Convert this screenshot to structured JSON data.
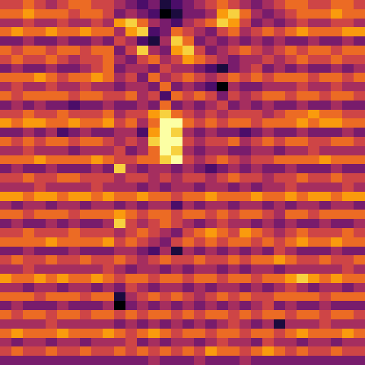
{
  "chart_data": {
    "type": "heatmap",
    "color": "inferno",
    "zlim": [
      0,
      9
    ],
    "tick_labels": false,
    "z": [
      [
        5,
        5,
        6,
        5,
        4,
        5,
        6,
        6,
        5,
        5,
        4,
        3,
        2,
        3,
        1,
        2,
        3,
        4,
        5,
        6,
        5,
        4,
        3,
        4,
        5,
        6,
        6,
        5,
        5,
        6,
        6,
        5
      ],
      [
        6,
        6,
        7,
        6,
        6,
        6,
        5,
        6,
        6,
        5,
        3,
        4,
        3,
        2,
        0,
        1,
        3,
        3,
        4,
        7,
        8,
        6,
        4,
        3,
        4,
        5,
        6,
        6,
        6,
        7,
        6,
        6
      ],
      [
        4,
        4,
        5,
        4,
        4,
        5,
        4,
        4,
        5,
        4,
        7,
        8,
        6,
        4,
        3,
        2,
        4,
        5,
        6,
        8,
        7,
        5,
        3,
        4,
        3,
        4,
        5,
        4,
        4,
        5,
        5,
        4
      ],
      [
        6,
        7,
        6,
        6,
        7,
        6,
        6,
        7,
        6,
        6,
        4,
        7,
        8,
        2,
        3,
        6,
        5,
        4,
        3,
        5,
        6,
        4,
        5,
        6,
        5,
        6,
        7,
        6,
        6,
        6,
        7,
        7
      ],
      [
        3,
        3,
        4,
        3,
        3,
        4,
        3,
        3,
        4,
        3,
        5,
        4,
        2,
        1,
        4,
        8,
        6,
        3,
        4,
        3,
        4,
        3,
        4,
        3,
        4,
        3,
        3,
        4,
        3,
        3,
        4,
        3
      ],
      [
        6,
        5,
        6,
        6,
        5,
        6,
        6,
        5,
        6,
        6,
        3,
        5,
        8,
        4,
        3,
        7,
        8,
        5,
        3,
        4,
        5,
        6,
        5,
        4,
        5,
        6,
        5,
        6,
        6,
        5,
        6,
        6
      ],
      [
        5,
        6,
        5,
        5,
        6,
        5,
        4,
        5,
        5,
        6,
        4,
        3,
        5,
        6,
        4,
        5,
        7,
        6,
        5,
        4,
        3,
        4,
        4,
        5,
        4,
        5,
        6,
        5,
        5,
        6,
        5,
        5
      ],
      [
        3,
        4,
        3,
        3,
        4,
        3,
        3,
        4,
        5,
        6,
        3,
        4,
        4,
        3,
        5,
        4,
        4,
        3,
        2,
        1,
        3,
        4,
        5,
        3,
        4,
        3,
        4,
        3,
        3,
        4,
        3,
        4
      ],
      [
        6,
        6,
        6,
        7,
        6,
        5,
        6,
        6,
        7,
        6,
        4,
        5,
        3,
        6,
        4,
        5,
        6,
        5,
        4,
        5,
        6,
        5,
        6,
        5,
        6,
        6,
        6,
        5,
        6,
        6,
        5,
        6
      ],
      [
        4,
        5,
        4,
        4,
        5,
        4,
        4,
        5,
        4,
        4,
        3,
        4,
        4,
        3,
        6,
        3,
        4,
        3,
        2,
        0,
        4,
        3,
        3,
        4,
        4,
        4,
        5,
        4,
        4,
        5,
        4,
        4
      ],
      [
        6,
        5,
        6,
        6,
        6,
        6,
        5,
        6,
        6,
        5,
        5,
        6,
        4,
        5,
        2,
        6,
        5,
        6,
        5,
        3,
        5,
        4,
        5,
        6,
        6,
        5,
        6,
        6,
        5,
        6,
        6,
        5
      ],
      [
        3,
        4,
        3,
        4,
        3,
        3,
        2,
        3,
        3,
        4,
        3,
        3,
        4,
        3,
        6,
        3,
        4,
        3,
        4,
        5,
        3,
        4,
        3,
        4,
        3,
        3,
        4,
        3,
        3,
        4,
        3,
        3
      ],
      [
        5,
        5,
        6,
        5,
        5,
        6,
        5,
        5,
        5,
        6,
        4,
        5,
        5,
        7,
        8,
        6,
        5,
        4,
        5,
        4,
        5,
        5,
        5,
        4,
        5,
        6,
        6,
        7,
        6,
        6,
        5,
        5
      ],
      [
        7,
        6,
        7,
        7,
        6,
        6,
        7,
        6,
        6,
        7,
        5,
        6,
        4,
        6,
        9,
        9,
        6,
        5,
        6,
        5,
        6,
        6,
        5,
        6,
        6,
        6,
        7,
        6,
        7,
        7,
        6,
        6
      ],
      [
        3,
        3,
        4,
        3,
        4,
        2,
        3,
        4,
        3,
        3,
        4,
        4,
        2,
        7,
        9,
        8,
        4,
        3,
        4,
        3,
        3,
        2,
        3,
        4,
        3,
        3,
        4,
        3,
        3,
        3,
        4,
        3
      ],
      [
        6,
        5,
        6,
        5,
        6,
        6,
        5,
        6,
        6,
        5,
        4,
        5,
        4,
        8,
        9,
        9,
        5,
        4,
        5,
        5,
        6,
        4,
        5,
        6,
        5,
        6,
        6,
        5,
        5,
        6,
        6,
        5
      ],
      [
        4,
        4,
        5,
        4,
        4,
        4,
        3,
        4,
        4,
        4,
        5,
        3,
        4,
        6,
        9,
        8,
        4,
        3,
        4,
        4,
        3,
        3,
        4,
        4,
        3,
        4,
        4,
        5,
        4,
        4,
        4,
        4
      ],
      [
        6,
        6,
        6,
        7,
        6,
        6,
        6,
        6,
        7,
        6,
        5,
        5,
        6,
        6,
        8,
        9,
        5,
        4,
        5,
        6,
        5,
        4,
        5,
        5,
        6,
        6,
        6,
        6,
        7,
        6,
        6,
        6
      ],
      [
        3,
        4,
        3,
        3,
        4,
        3,
        3,
        3,
        4,
        3,
        8,
        4,
        3,
        4,
        4,
        3,
        4,
        3,
        2,
        3,
        4,
        3,
        4,
        3,
        3,
        4,
        3,
        3,
        3,
        4,
        3,
        3
      ],
      [
        5,
        5,
        6,
        5,
        5,
        6,
        6,
        5,
        5,
        5,
        4,
        5,
        5,
        4,
        5,
        4,
        5,
        5,
        4,
        5,
        6,
        5,
        5,
        4,
        5,
        5,
        6,
        5,
        5,
        6,
        5,
        5
      ],
      [
        4,
        4,
        4,
        5,
        4,
        4,
        4,
        4,
        5,
        4,
        4,
        4,
        3,
        4,
        3,
        4,
        4,
        3,
        4,
        4,
        3,
        4,
        3,
        4,
        4,
        5,
        4,
        4,
        4,
        4,
        5,
        4
      ],
      [
        7,
        7,
        6,
        7,
        7,
        6,
        7,
        7,
        6,
        7,
        6,
        6,
        7,
        6,
        6,
        5,
        6,
        6,
        7,
        6,
        6,
        6,
        7,
        6,
        6,
        7,
        6,
        7,
        7,
        6,
        7,
        7
      ],
      [
        4,
        3,
        4,
        4,
        3,
        4,
        4,
        3,
        4,
        4,
        3,
        4,
        3,
        4,
        4,
        2,
        4,
        3,
        4,
        4,
        3,
        4,
        4,
        3,
        4,
        3,
        4,
        4,
        3,
        4,
        4,
        3
      ],
      [
        6,
        6,
        5,
        6,
        6,
        6,
        5,
        6,
        6,
        6,
        7,
        6,
        5,
        6,
        6,
        5,
        6,
        6,
        5,
        6,
        5,
        6,
        6,
        5,
        4,
        6,
        6,
        5,
        6,
        6,
        6,
        6
      ],
      [
        3,
        4,
        3,
        3,
        4,
        3,
        4,
        3,
        3,
        4,
        8,
        5,
        4,
        5,
        6,
        5,
        4,
        3,
        4,
        5,
        4,
        4,
        3,
        4,
        3,
        4,
        3,
        3,
        4,
        3,
        3,
        4
      ],
      [
        5,
        5,
        6,
        5,
        5,
        5,
        6,
        5,
        5,
        5,
        4,
        5,
        6,
        5,
        4,
        3,
        5,
        6,
        7,
        6,
        5,
        7,
        6,
        5,
        4,
        5,
        6,
        5,
        5,
        5,
        6,
        5
      ],
      [
        6,
        6,
        6,
        6,
        7,
        6,
        6,
        6,
        6,
        7,
        5,
        6,
        5,
        4,
        3,
        5,
        6,
        5,
        6,
        5,
        6,
        6,
        5,
        6,
        5,
        6,
        7,
        6,
        6,
        7,
        6,
        6
      ],
      [
        3,
        3,
        4,
        3,
        3,
        3,
        4,
        3,
        3,
        3,
        4,
        4,
        3,
        2,
        4,
        1,
        4,
        3,
        4,
        3,
        4,
        3,
        4,
        3,
        5,
        4,
        3,
        3,
        3,
        4,
        3,
        3
      ],
      [
        5,
        6,
        5,
        5,
        6,
        5,
        5,
        6,
        5,
        5,
        6,
        5,
        4,
        5,
        6,
        5,
        5,
        6,
        5,
        5,
        6,
        5,
        6,
        6,
        7,
        6,
        5,
        5,
        6,
        5,
        5,
        6
      ],
      [
        4,
        4,
        5,
        4,
        4,
        4,
        4,
        4,
        4,
        5,
        4,
        3,
        4,
        4,
        3,
        4,
        3,
        4,
        4,
        3,
        4,
        3,
        4,
        4,
        3,
        4,
        4,
        4,
        4,
        4,
        5,
        4
      ],
      [
        7,
        6,
        6,
        7,
        6,
        7,
        6,
        6,
        7,
        6,
        5,
        6,
        6,
        5,
        6,
        6,
        5,
        6,
        6,
        5,
        6,
        6,
        5,
        6,
        6,
        7,
        8,
        7,
        6,
        7,
        6,
        6
      ],
      [
        4,
        4,
        3,
        4,
        4,
        3,
        4,
        4,
        3,
        4,
        3,
        5,
        4,
        3,
        4,
        4,
        3,
        4,
        3,
        4,
        4,
        3,
        4,
        3,
        4,
        5,
        4,
        3,
        4,
        4,
        3,
        4
      ],
      [
        6,
        6,
        6,
        5,
        6,
        6,
        6,
        5,
        6,
        6,
        1,
        4,
        5,
        6,
        5,
        6,
        5,
        4,
        5,
        6,
        5,
        6,
        5,
        5,
        6,
        6,
        6,
        6,
        5,
        6,
        6,
        6
      ],
      [
        3,
        4,
        3,
        3,
        3,
        4,
        3,
        3,
        3,
        4,
        0,
        3,
        4,
        3,
        4,
        3,
        4,
        3,
        4,
        3,
        4,
        3,
        4,
        5,
        3,
        4,
        3,
        3,
        4,
        3,
        3,
        3
      ],
      [
        6,
        5,
        6,
        6,
        5,
        6,
        6,
        5,
        6,
        6,
        5,
        6,
        5,
        6,
        6,
        5,
        6,
        5,
        6,
        6,
        5,
        6,
        5,
        6,
        6,
        5,
        6,
        6,
        5,
        6,
        6,
        5
      ],
      [
        4,
        4,
        4,
        4,
        5,
        4,
        4,
        4,
        4,
        4,
        3,
        4,
        3,
        4,
        3,
        4,
        3,
        4,
        3,
        4,
        5,
        4,
        3,
        4,
        1,
        4,
        4,
        4,
        5,
        4,
        4,
        4
      ],
      [
        6,
        7,
        6,
        6,
        6,
        7,
        6,
        6,
        6,
        7,
        6,
        5,
        6,
        7,
        6,
        5,
        6,
        6,
        5,
        6,
        6,
        5,
        6,
        6,
        5,
        6,
        7,
        6,
        6,
        6,
        7,
        6
      ],
      [
        4,
        3,
        4,
        4,
        3,
        4,
        4,
        3,
        4,
        4,
        4,
        5,
        3,
        4,
        3,
        4,
        4,
        3,
        4,
        5,
        4,
        4,
        3,
        5,
        4,
        4,
        3,
        4,
        4,
        3,
        4,
        4
      ],
      [
        5,
        6,
        5,
        5,
        6,
        5,
        5,
        6,
        5,
        5,
        6,
        5,
        6,
        5,
        6,
        5,
        6,
        5,
        7,
        6,
        6,
        5,
        6,
        7,
        6,
        5,
        6,
        5,
        5,
        6,
        5,
        5
      ],
      [
        3,
        3,
        3,
        3,
        3,
        3,
        3,
        3,
        3,
        3,
        3,
        3,
        3,
        4,
        3,
        3,
        3,
        4,
        3,
        3,
        3,
        4,
        3,
        3,
        3,
        3,
        3,
        3,
        3,
        3,
        3,
        3
      ]
    ]
  }
}
